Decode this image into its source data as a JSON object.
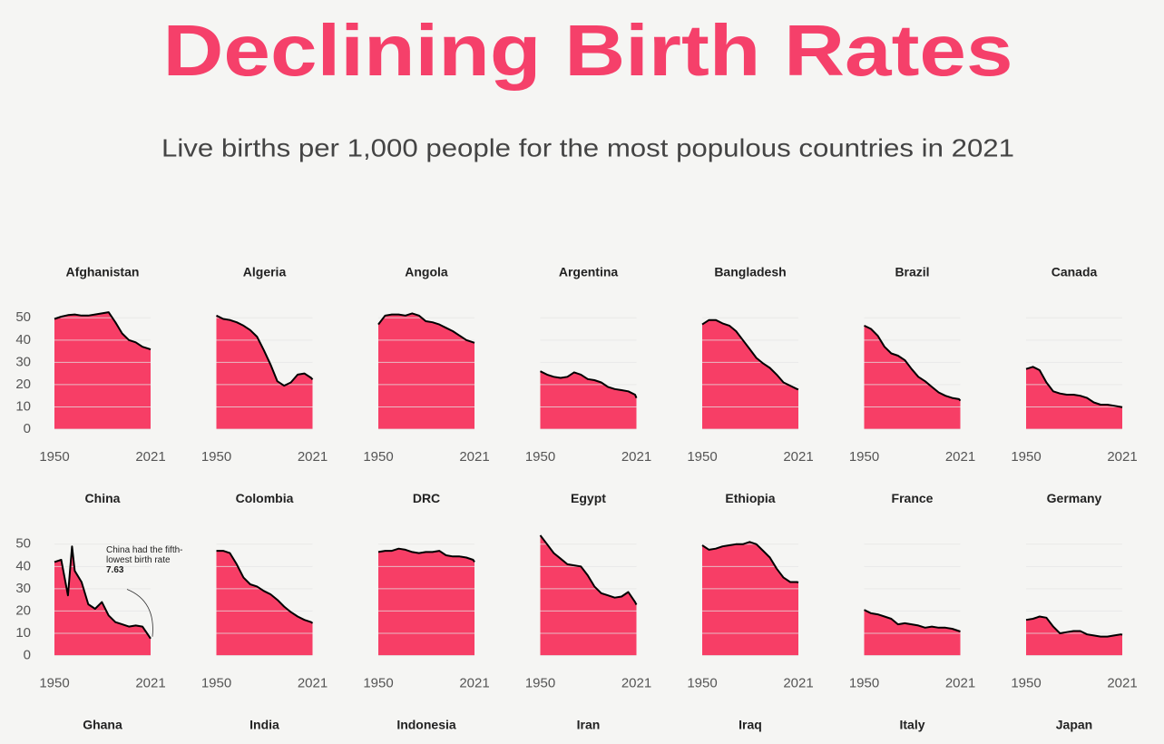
{
  "title": "Declining Birth Rates",
  "subtitle": "Live births per 1,000 people for the most populous countries in 2021",
  "chart_data": [
    {
      "type": "area",
      "title": "Afghanistan",
      "x": [
        1950,
        1955,
        1960,
        1965,
        1970,
        1975,
        1980,
        1985,
        1990,
        1995,
        2000,
        2005,
        2010,
        2015,
        2020,
        2021
      ],
      "values": [
        49.5,
        50.5,
        51.2,
        51.5,
        51,
        51,
        51.5,
        52,
        52.5,
        48,
        43,
        40,
        39,
        37,
        36,
        35.8
      ],
      "xlim": [
        1950,
        2021
      ],
      "xticks": [
        1950,
        2021
      ],
      "ylim": [
        0,
        55
      ],
      "yticks": [
        0,
        10,
        20,
        30,
        40,
        50
      ],
      "grid": true,
      "color": "#f73e66",
      "line_color": "#000000"
    },
    {
      "type": "area",
      "title": "Algeria",
      "x": [
        1950,
        1955,
        1960,
        1965,
        1970,
        1975,
        1980,
        1985,
        1990,
        1995,
        2000,
        2005,
        2010,
        2015,
        2020,
        2021
      ],
      "values": [
        51,
        49.5,
        49,
        48,
        46.5,
        44.5,
        41.5,
        35.5,
        29,
        21.5,
        19.5,
        21,
        24.5,
        25,
        23,
        22.3
      ],
      "xlim": [
        1950,
        2021
      ],
      "xticks": [
        1950,
        2021
      ],
      "ylim": [
        0,
        55
      ],
      "yticks": [
        0,
        10,
        20,
        30,
        40,
        50
      ],
      "grid": true,
      "color": "#f73e66",
      "line_color": "#000000"
    },
    {
      "type": "area",
      "title": "Angola",
      "x": [
        1950,
        1955,
        1960,
        1965,
        1970,
        1975,
        1980,
        1985,
        1990,
        1995,
        2000,
        2005,
        2010,
        2015,
        2020,
        2021
      ],
      "values": [
        47,
        51,
        51.5,
        51.5,
        51,
        52,
        51,
        48.5,
        48,
        47,
        45.5,
        44,
        42,
        40,
        39,
        38.8
      ],
      "xlim": [
        1950,
        2021
      ],
      "xticks": [
        1950,
        2021
      ],
      "ylim": [
        0,
        55
      ],
      "yticks": [
        0,
        10,
        20,
        30,
        40,
        50
      ],
      "grid": true,
      "color": "#f73e66",
      "line_color": "#000000"
    },
    {
      "type": "area",
      "title": "Argentina",
      "x": [
        1950,
        1955,
        1960,
        1965,
        1970,
        1975,
        1980,
        1985,
        1990,
        1995,
        2000,
        2005,
        2010,
        2015,
        2020,
        2021
      ],
      "values": [
        26,
        24.5,
        23.5,
        23,
        23.5,
        25.5,
        24.5,
        22.5,
        22,
        21,
        19,
        18,
        17.5,
        17,
        15.5,
        14
      ],
      "xlim": [
        1950,
        2021
      ],
      "xticks": [
        1950,
        2021
      ],
      "ylim": [
        0,
        55
      ],
      "yticks": [
        0,
        10,
        20,
        30,
        40,
        50
      ],
      "grid": true,
      "color": "#f73e66",
      "line_color": "#000000"
    },
    {
      "type": "area",
      "title": "Bangladesh",
      "x": [
        1950,
        1955,
        1960,
        1965,
        1970,
        1975,
        1980,
        1985,
        1990,
        1995,
        2000,
        2005,
        2010,
        2015,
        2020,
        2021
      ],
      "values": [
        47,
        49,
        49,
        47.5,
        46.5,
        44,
        40,
        36,
        32,
        29.5,
        27.5,
        24.5,
        21,
        19.5,
        18,
        17.9
      ],
      "xlim": [
        1950,
        2021
      ],
      "xticks": [
        1950,
        2021
      ],
      "ylim": [
        0,
        55
      ],
      "yticks": [
        0,
        10,
        20,
        30,
        40,
        50
      ],
      "grid": true,
      "color": "#f73e66",
      "line_color": "#000000"
    },
    {
      "type": "area",
      "title": "Brazil",
      "x": [
        1950,
        1955,
        1960,
        1965,
        1970,
        1975,
        1980,
        1985,
        1990,
        1995,
        2000,
        2005,
        2010,
        2015,
        2020,
        2021
      ],
      "values": [
        46.5,
        45,
        42,
        37,
        34,
        33,
        31,
        27,
        23.5,
        21.5,
        19,
        16.5,
        15,
        14,
        13.5,
        12.8
      ],
      "xlim": [
        1950,
        2021
      ],
      "xticks": [
        1950,
        2021
      ],
      "ylim": [
        0,
        55
      ],
      "yticks": [
        0,
        10,
        20,
        30,
        40,
        50
      ],
      "grid": true,
      "color": "#f73e66",
      "line_color": "#000000"
    },
    {
      "type": "area",
      "title": "Canada",
      "x": [
        1950,
        1955,
        1960,
        1965,
        1970,
        1975,
        1980,
        1985,
        1990,
        1995,
        2000,
        2005,
        2010,
        2015,
        2020,
        2021
      ],
      "values": [
        27,
        28,
        26.5,
        21,
        17,
        16,
        15.5,
        15.5,
        15,
        14,
        12,
        11,
        11,
        10.5,
        10,
        9.8
      ],
      "xlim": [
        1950,
        2021
      ],
      "xticks": [
        1950,
        2021
      ],
      "ylim": [
        0,
        55
      ],
      "yticks": [
        0,
        10,
        20,
        30,
        40,
        50
      ],
      "grid": true,
      "color": "#f73e66",
      "line_color": "#000000"
    },
    {
      "type": "area",
      "title": "China",
      "x": [
        1950,
        1955,
        1960,
        1963,
        1965,
        1970,
        1975,
        1980,
        1985,
        1990,
        1995,
        2000,
        2005,
        2010,
        2015,
        2020,
        2021
      ],
      "values": [
        42,
        43,
        27,
        49,
        38,
        33,
        23,
        21,
        24,
        18,
        15,
        14,
        13,
        13.5,
        13,
        8.5,
        7.63
      ],
      "xlim": [
        1950,
        2021
      ],
      "xticks": [
        1950,
        2021
      ],
      "ylim": [
        0,
        55
      ],
      "yticks": [
        0,
        10,
        20,
        30,
        40,
        50
      ],
      "grid": true,
      "color": "#f73e66",
      "line_color": "#000000",
      "annotation": "China had the fifth-lowest birth rate",
      "annotation_value": 7.63
    },
    {
      "type": "area",
      "title": "Colombia",
      "x": [
        1950,
        1955,
        1960,
        1965,
        1970,
        1975,
        1980,
        1985,
        1990,
        1995,
        2000,
        2005,
        2010,
        2015,
        2020,
        2021
      ],
      "values": [
        47,
        47,
        46,
        41,
        35,
        32,
        31,
        29,
        27.5,
        25,
        22,
        19.5,
        17.5,
        16,
        15,
        14.5
      ],
      "xlim": [
        1950,
        2021
      ],
      "xticks": [
        1950,
        2021
      ],
      "ylim": [
        0,
        55
      ],
      "yticks": [
        0,
        10,
        20,
        30,
        40,
        50
      ],
      "grid": true,
      "color": "#f73e66",
      "line_color": "#000000"
    },
    {
      "type": "area",
      "title": "DRC",
      "x": [
        1950,
        1955,
        1960,
        1965,
        1970,
        1975,
        1980,
        1985,
        1990,
        1995,
        2000,
        2005,
        2010,
        2015,
        2020,
        2021
      ],
      "values": [
        46.5,
        47,
        47,
        48,
        47.5,
        46.5,
        46,
        46.5,
        46.5,
        47,
        45,
        44.5,
        44.5,
        44,
        43,
        42
      ],
      "xlim": [
        1950,
        2021
      ],
      "xticks": [
        1950,
        2021
      ],
      "ylim": [
        0,
        55
      ],
      "yticks": [
        0,
        10,
        20,
        30,
        40,
        50
      ],
      "grid": true,
      "color": "#f73e66",
      "line_color": "#000000"
    },
    {
      "type": "area",
      "title": "Egypt",
      "x": [
        1950,
        1955,
        1960,
        1965,
        1970,
        1975,
        1980,
        1985,
        1990,
        1995,
        2000,
        2005,
        2010,
        2015,
        2020,
        2021
      ],
      "values": [
        54,
        50,
        46,
        43.5,
        41,
        40.5,
        40,
        36,
        31,
        28,
        27,
        26,
        26.5,
        28.5,
        24,
        22.8
      ],
      "xlim": [
        1950,
        2021
      ],
      "xticks": [
        1950,
        2021
      ],
      "ylim": [
        0,
        55
      ],
      "yticks": [
        0,
        10,
        20,
        30,
        40,
        50
      ],
      "grid": true,
      "color": "#f73e66",
      "line_color": "#000000"
    },
    {
      "type": "area",
      "title": "Ethiopia",
      "x": [
        1950,
        1955,
        1960,
        1965,
        1970,
        1975,
        1980,
        1985,
        1990,
        1995,
        2000,
        2005,
        2010,
        2015,
        2020,
        2021
      ],
      "values": [
        49.5,
        47.5,
        48,
        49,
        49.5,
        50,
        50,
        51,
        50,
        47,
        44,
        39,
        35,
        33,
        33,
        32.8
      ],
      "xlim": [
        1950,
        2021
      ],
      "xticks": [
        1950,
        2021
      ],
      "ylim": [
        0,
        55
      ],
      "yticks": [
        0,
        10,
        20,
        30,
        40,
        50
      ],
      "grid": true,
      "color": "#f73e66",
      "line_color": "#000000"
    },
    {
      "type": "area",
      "title": "France",
      "x": [
        1950,
        1955,
        1960,
        1965,
        1970,
        1975,
        1980,
        1985,
        1990,
        1995,
        2000,
        2005,
        2010,
        2015,
        2020,
        2021
      ],
      "values": [
        20.5,
        19,
        18.5,
        17.5,
        16.5,
        14,
        14.5,
        14,
        13.5,
        12.5,
        13,
        12.5,
        12.5,
        12,
        11,
        10.8
      ],
      "xlim": [
        1950,
        2021
      ],
      "xticks": [
        1950,
        2021
      ],
      "ylim": [
        0,
        55
      ],
      "yticks": [
        0,
        10,
        20,
        30,
        40,
        50
      ],
      "grid": true,
      "color": "#f73e66",
      "line_color": "#000000"
    },
    {
      "type": "area",
      "title": "Germany",
      "x": [
        1950,
        1955,
        1960,
        1965,
        1970,
        1975,
        1980,
        1985,
        1990,
        1995,
        2000,
        2005,
        2010,
        2015,
        2020,
        2021
      ],
      "values": [
        16,
        16.5,
        17.5,
        17,
        13,
        10,
        10.5,
        11,
        11,
        9.5,
        9,
        8.5,
        8.5,
        9,
        9.5,
        9.3
      ],
      "xlim": [
        1950,
        2021
      ],
      "xticks": [
        1950,
        2021
      ],
      "ylim": [
        0,
        55
      ],
      "yticks": [
        0,
        10,
        20,
        30,
        40,
        50
      ],
      "grid": true,
      "color": "#f73e66",
      "line_color": "#000000"
    },
    {
      "type": "area",
      "title": "Ghana"
    },
    {
      "type": "area",
      "title": "India"
    },
    {
      "type": "area",
      "title": "Indonesia"
    },
    {
      "type": "area",
      "title": "Iran"
    },
    {
      "type": "area",
      "title": "Iraq"
    },
    {
      "type": "area",
      "title": "Italy"
    },
    {
      "type": "area",
      "title": "Japan"
    }
  ]
}
